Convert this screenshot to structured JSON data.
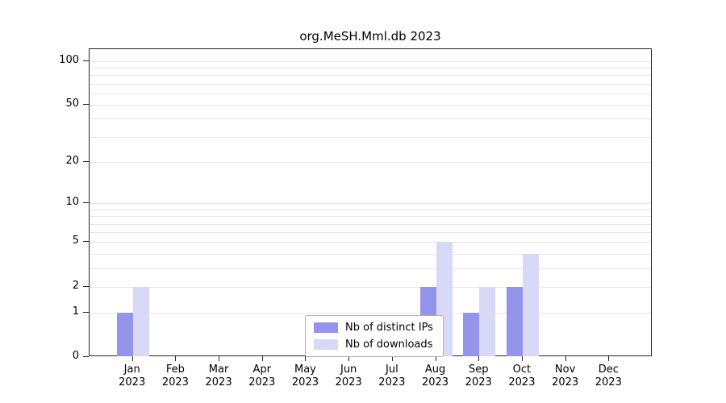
{
  "chart_data": {
    "type": "bar",
    "title": "org.MeSH.Mml.db 2023",
    "categories": [
      "Jan",
      "Feb",
      "Mar",
      "Apr",
      "May",
      "Jun",
      "Jul",
      "Aug",
      "Sep",
      "Oct",
      "Nov",
      "Dec"
    ],
    "year_label": "2023",
    "series": [
      {
        "name": "Nb of distinct IPs",
        "color": "#9494eb",
        "values": [
          1,
          0,
          0,
          0,
          0,
          0,
          0,
          2,
          1,
          2,
          0,
          0
        ]
      },
      {
        "name": "Nb of downloads",
        "color": "#d8d8f7",
        "values": [
          2,
          0,
          0,
          0,
          0,
          0,
          0,
          5,
          2,
          4,
          0,
          0
        ]
      }
    ],
    "yticks": [
      0,
      1,
      2,
      5,
      10,
      20,
      50,
      100
    ],
    "grid_values": [
      1,
      2,
      3,
      4,
      5,
      6,
      7,
      8,
      9,
      10,
      20,
      30,
      40,
      50,
      60,
      70,
      80,
      90,
      100
    ],
    "scale": "log10(value+1)",
    "ylim": [
      0,
      100
    ],
    "xlabel": "",
    "ylabel": "",
    "legend_position": "bottom-center",
    "grid": "horizontal-minor-log"
  }
}
